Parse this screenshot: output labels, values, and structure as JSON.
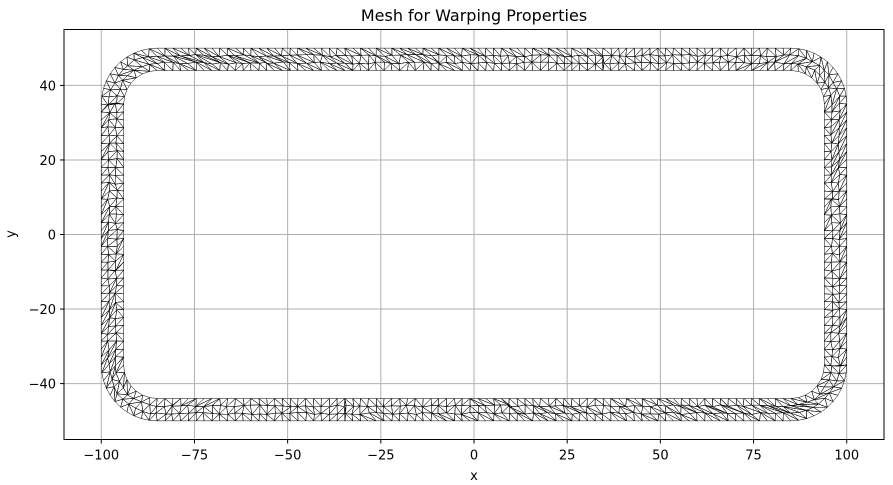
{
  "chart_data": {
    "type": "mesh",
    "title": "Mesh for Warping Properties",
    "xlabel": "x",
    "ylabel": "y",
    "xlim": [
      -110,
      110
    ],
    "ylim": [
      -55,
      55
    ],
    "xticks": [
      -100,
      -75,
      -50,
      -25,
      0,
      25,
      50,
      75,
      100
    ],
    "yticks": [
      -40,
      -20,
      0,
      20,
      40
    ],
    "xtick_labels": [
      "−100",
      "−75",
      "−50",
      "−25",
      "0",
      "25",
      "50",
      "75",
      "100"
    ],
    "ytick_labels": [
      "−40",
      "−20",
      "0",
      "20",
      "40"
    ],
    "grid": true,
    "section": {
      "shape": "rounded rectangular hollow section",
      "outer_width": 200,
      "outer_height": 100,
      "outer_corner_radius": 15,
      "wall_thickness": 6,
      "center": [
        0,
        0
      ]
    },
    "colors": {
      "mesh": "#000000",
      "grid": "#b0b0b0",
      "background": "#ffffff"
    }
  }
}
